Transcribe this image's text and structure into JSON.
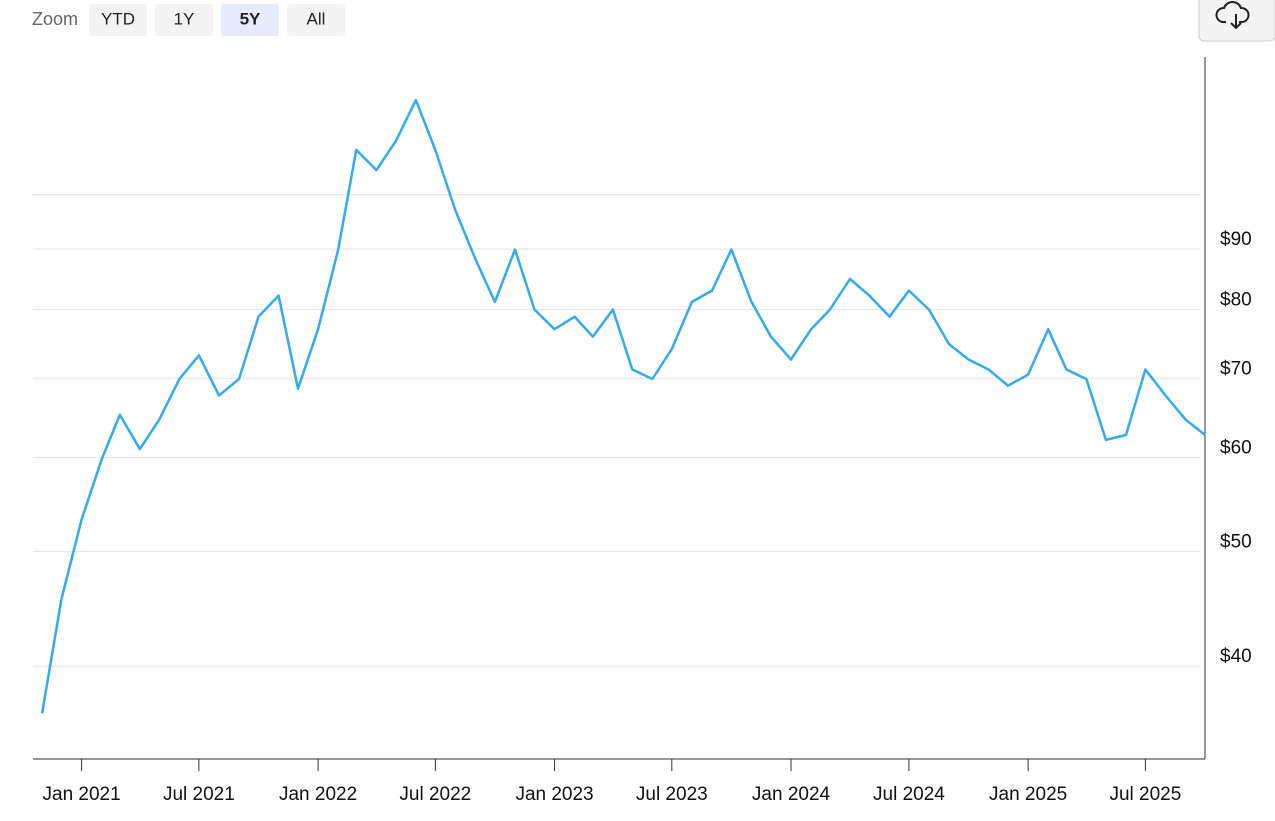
{
  "toolbar": {
    "zoom_label": "Zoom",
    "buttons": [
      "YTD",
      "1Y",
      "5Y",
      "All"
    ],
    "selected": 2
  },
  "chart_data": {
    "type": "line",
    "log_scale": true,
    "grid": true,
    "xlim": [
      "2020-10",
      "2025-10"
    ],
    "xticks": [
      {
        "value": "2021-01",
        "label": "Jan 2021"
      },
      {
        "value": "2021-07",
        "label": "Jul 2021"
      },
      {
        "value": "2022-01",
        "label": "Jan 2022"
      },
      {
        "value": "2022-07",
        "label": "Jul 2022"
      },
      {
        "value": "2023-01",
        "label": "Jan 2023"
      },
      {
        "value": "2023-07",
        "label": "Jul 2023"
      },
      {
        "value": "2024-01",
        "label": "Jan 2024"
      },
      {
        "value": "2024-07",
        "label": "Jul 2024"
      },
      {
        "value": "2025-01",
        "label": "Jan 2025"
      },
      {
        "value": "2025-07",
        "label": "Jul 2025"
      }
    ],
    "ylim": [
      33.4,
      130.7
    ],
    "yticks": [
      {
        "value": 40,
        "label": "$40"
      },
      {
        "value": 50,
        "label": "$50"
      },
      {
        "value": 60,
        "label": "$60"
      },
      {
        "value": 70,
        "label": "$70"
      },
      {
        "value": 80,
        "label": "$80"
      },
      {
        "value": 90,
        "label": "$90"
      },
      {
        "value": 100,
        "label": null
      }
    ],
    "x": [
      "2020-11",
      "2020-12",
      "2021-01",
      "2021-02",
      "2021-03",
      "2021-04",
      "2021-05",
      "2021-06",
      "2021-07",
      "2021-08",
      "2021-09",
      "2021-10",
      "2021-11",
      "2021-12",
      "2022-01",
      "2022-02",
      "2022-03",
      "2022-04",
      "2022-05",
      "2022-06",
      "2022-07",
      "2022-08",
      "2022-09",
      "2022-10",
      "2022-11",
      "2022-12",
      "2023-01",
      "2023-02",
      "2023-03",
      "2023-04",
      "2023-05",
      "2023-06",
      "2023-07",
      "2023-08",
      "2023-09",
      "2023-10",
      "2023-11",
      "2023-12",
      "2024-01",
      "2024-02",
      "2024-03",
      "2024-04",
      "2024-05",
      "2024-06",
      "2024-07",
      "2024-08",
      "2024-09",
      "2024-10",
      "2024-11",
      "2024-12",
      "2025-01",
      "2025-02",
      "2025-03",
      "2025-04",
      "2025-05",
      "2025-06",
      "2025-07",
      "2025-08",
      "2025-09",
      "2025-10"
    ],
    "series": [
      {
        "color": "#33aaf2",
        "values": [
          36.5,
          45.6,
          53.2,
          59.8,
          65.2,
          61.0,
          64.6,
          69.9,
          73.2,
          67.7,
          69.9,
          78.9,
          82.2,
          68.6,
          77.0,
          89.9,
          109.1,
          104.9,
          111.0,
          120.2,
          109.1,
          97.0,
          88.2,
          81.2,
          89.9,
          80.0,
          77.0,
          78.9,
          75.9,
          80.0,
          71.2,
          69.9,
          74.1,
          81.2,
          83.0,
          89.9,
          81.2,
          75.9,
          72.6,
          77.0,
          80.0,
          84.9,
          82.2,
          78.9,
          83.0,
          80.0,
          74.8,
          72.6,
          71.2,
          69.0,
          70.5,
          77.0,
          71.2,
          69.9,
          62.1,
          62.7,
          71.2,
          67.7,
          64.6,
          62.7
        ]
      }
    ]
  }
}
